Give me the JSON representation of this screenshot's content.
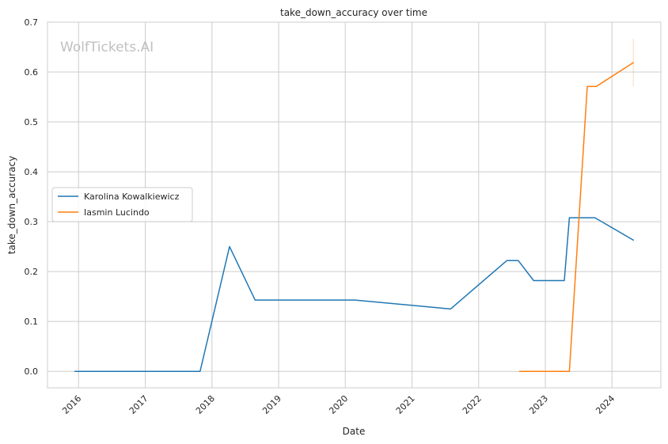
{
  "watermark": "WolfTickets.AI",
  "chart_data": {
    "type": "line",
    "title": "take_down_accuracy over time",
    "xlabel": "Date",
    "ylabel": "take_down_accuracy",
    "ylim": [
      -0.033,
      0.7
    ],
    "xlim": [
      "2015-07-15",
      "2024-09-25"
    ],
    "x_ticks": [
      "2016",
      "2017",
      "2018",
      "2019",
      "2020",
      "2021",
      "2022",
      "2023",
      "2024"
    ],
    "y_ticks": [
      "0.0",
      "0.1",
      "0.2",
      "0.3",
      "0.4",
      "0.5",
      "0.6",
      "0.7"
    ],
    "grid": true,
    "legend_position": "center-left",
    "series": [
      {
        "name": "Karolina Kowalkiewicz",
        "color": "#1f77b4",
        "points": [
          {
            "x": "2015-12-12",
            "y": 0.0
          },
          {
            "x": "2017-10-28",
            "y": 0.0
          },
          {
            "x": "2018-04-07",
            "y": 0.25
          },
          {
            "x": "2018-08-25",
            "y": 0.143
          },
          {
            "x": "2020-02-22",
            "y": 0.143
          },
          {
            "x": "2021-07-31",
            "y": 0.125
          },
          {
            "x": "2022-06-04",
            "y": 0.222
          },
          {
            "x": "2022-08-06",
            "y": 0.222
          },
          {
            "x": "2022-10-29",
            "y": 0.182
          },
          {
            "x": "2023-04-15",
            "y": 0.182
          },
          {
            "x": "2023-05-13",
            "y": 0.308
          },
          {
            "x": "2023-09-30",
            "y": 0.308
          },
          {
            "x": "2024-04-27",
            "y": 0.263
          }
        ]
      },
      {
        "name": "Iasmin Lucindo",
        "color": "#ff7f0e",
        "points": [
          {
            "x": "2022-08-13",
            "y": 0.0
          },
          {
            "x": "2023-05-13",
            "y": 0.0
          },
          {
            "x": "2023-08-19",
            "y": 0.571
          },
          {
            "x": "2023-10-07",
            "y": 0.571
          },
          {
            "x": "2024-04-27",
            "y": 0.619
          }
        ],
        "end_error_bar": {
          "x": "2024-04-27",
          "low": 0.571,
          "high": 0.667
        }
      }
    ]
  }
}
